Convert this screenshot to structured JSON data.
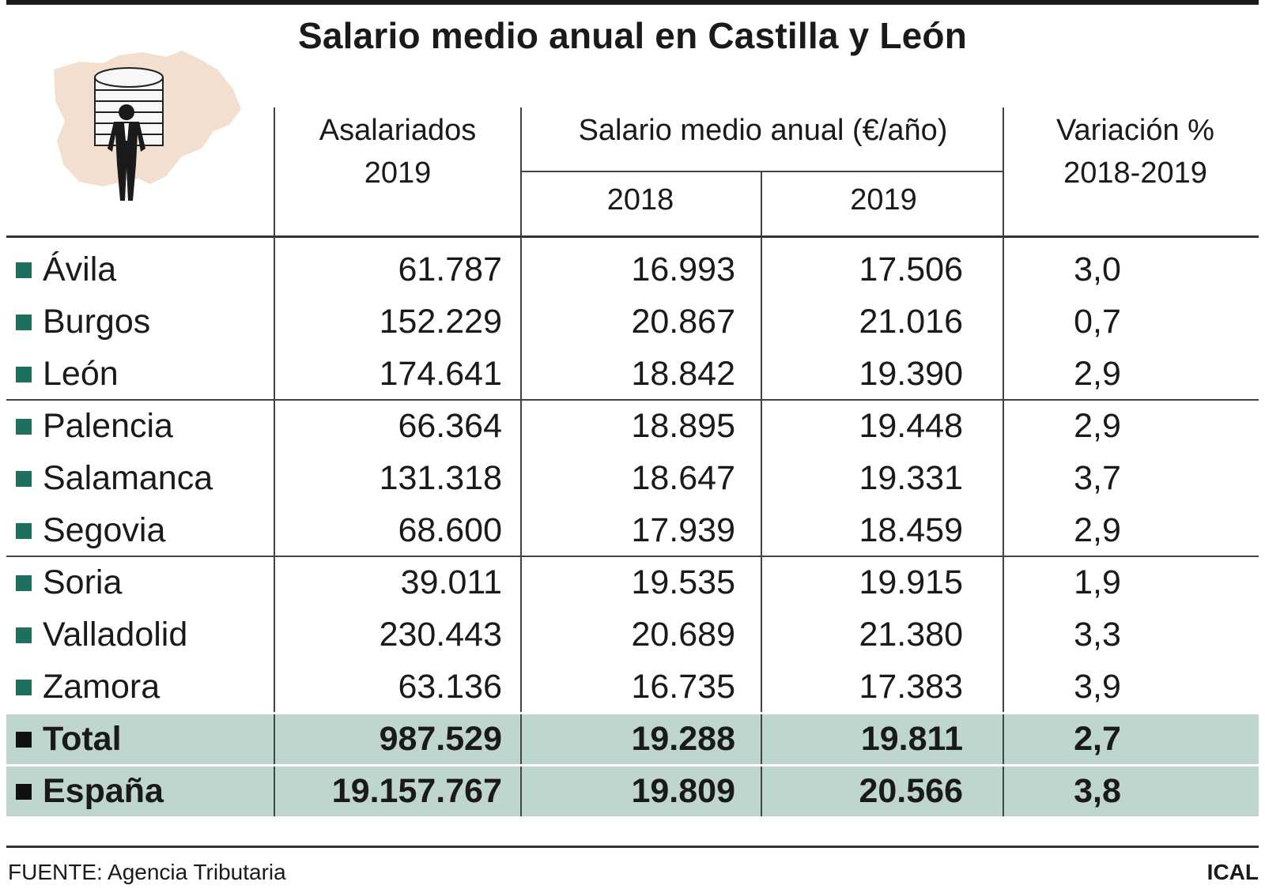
{
  "colors": {
    "marker": "#1f6f5f",
    "marker_summary": "#111111",
    "highlight_band": "#bfd5cf",
    "map_fill": "#f3dfcf"
  },
  "illustration_icon": "businessman-with-coin-stack-over-region-map-icon",
  "title": "Salario medio anual en Castilla y León",
  "headers": {
    "asalariados_line1": "Asalariados",
    "asalariados_line2": "2019",
    "salario_group": "Salario medio anual (€/año)",
    "year_2018": "2018",
    "year_2019": "2019",
    "variacion_line1": "Variación %",
    "variacion_line2": "2018-2019"
  },
  "chart_data": {
    "type": "table",
    "title": "Salario medio anual en Castilla y León",
    "columns": [
      "Asalariados 2019",
      "Salario medio anual (€/año) 2018",
      "Salario medio anual (€/año) 2019",
      "Variación % 2018-2019"
    ],
    "rows": [
      {
        "name": "Ávila",
        "asalariados": "61.787",
        "s2018": "16.993",
        "s2019": "17.506",
        "variacion": "3,0"
      },
      {
        "name": "Burgos",
        "asalariados": "152.229",
        "s2018": "20.867",
        "s2019": "21.016",
        "variacion": "0,7"
      },
      {
        "name": "León",
        "asalariados": "174.641",
        "s2018": "18.842",
        "s2019": "19.390",
        "variacion": "2,9"
      },
      {
        "name": "Palencia",
        "asalariados": "66.364",
        "s2018": "18.895",
        "s2019": "19.448",
        "variacion": "2,9"
      },
      {
        "name": "Salamanca",
        "asalariados": "131.318",
        "s2018": "18.647",
        "s2019": "19.331",
        "variacion": "3,7"
      },
      {
        "name": "Segovia",
        "asalariados": "68.600",
        "s2018": "17.939",
        "s2019": "18.459",
        "variacion": "2,9"
      },
      {
        "name": "Soria",
        "asalariados": "39.011",
        "s2018": "19.535",
        "s2019": "19.915",
        "variacion": "1,9"
      },
      {
        "name": "Valladolid",
        "asalariados": "230.443",
        "s2018": "20.689",
        "s2019": "21.380",
        "variacion": "3,3"
      },
      {
        "name": "Zamora",
        "asalariados": "63.136",
        "s2018": "16.735",
        "s2019": "17.383",
        "variacion": "3,9"
      }
    ],
    "summary_rows": [
      {
        "name": "Total",
        "asalariados": "987.529",
        "s2018": "19.288",
        "s2019": "19.811",
        "variacion": "2,7"
      },
      {
        "name": "España",
        "asalariados": "19.157.767",
        "s2018": "19.809",
        "s2019": "20.566",
        "variacion": "3,8"
      }
    ]
  },
  "footer": {
    "source": "FUENTE: Agencia Tributaria",
    "credit": "ICAL"
  }
}
